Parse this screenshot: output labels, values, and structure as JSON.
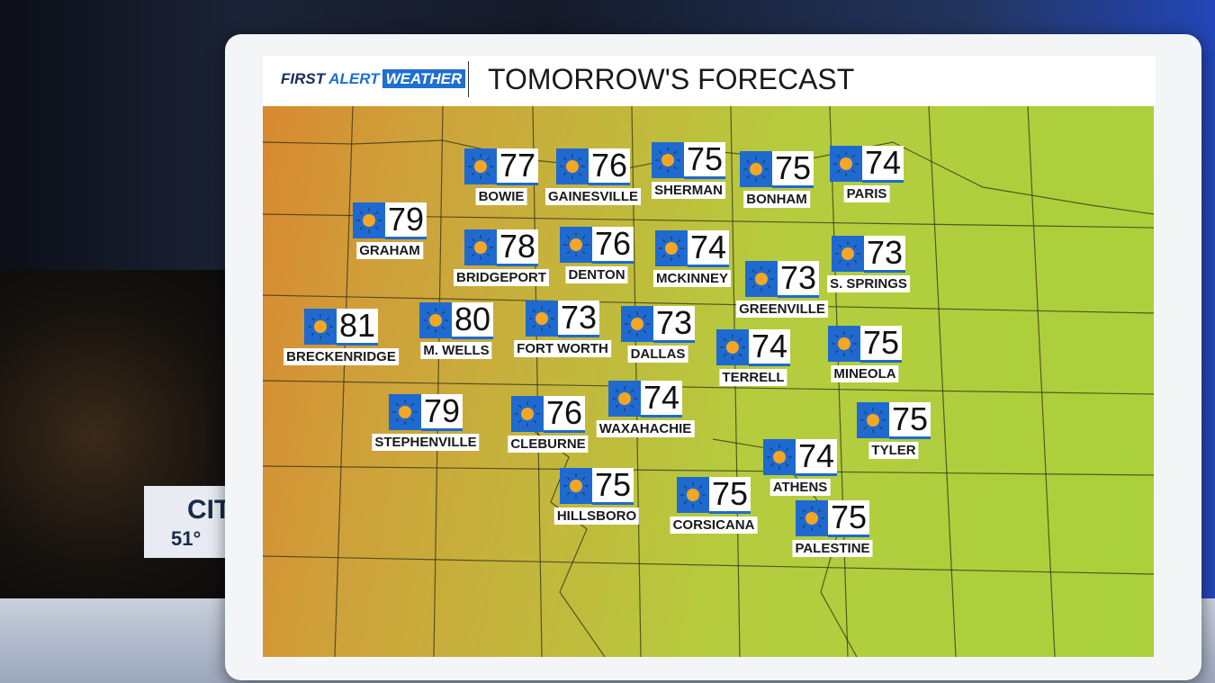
{
  "header": {
    "brand_first": "FIRST",
    "brand_alert": "ALERT",
    "brand_weather": "WEATHER",
    "title": "TOMORROW'S FORECAST"
  },
  "background": {
    "partial_text": "CIT",
    "partial_temp": "51°"
  },
  "cities": [
    {
      "name": "BOWIE",
      "temp": 77
    },
    {
      "name": "GAINESVILLE",
      "temp": 76
    },
    {
      "name": "SHERMAN",
      "temp": 75
    },
    {
      "name": "BONHAM",
      "temp": 75
    },
    {
      "name": "PARIS",
      "temp": 74
    },
    {
      "name": "GRAHAM",
      "temp": 79
    },
    {
      "name": "BRIDGEPORT",
      "temp": 78
    },
    {
      "name": "DENTON",
      "temp": 76
    },
    {
      "name": "MCKINNEY",
      "temp": 74
    },
    {
      "name": "GREENVILLE",
      "temp": 73
    },
    {
      "name": "S. SPRINGS",
      "temp": 73
    },
    {
      "name": "BRECKENRIDGE",
      "temp": 81
    },
    {
      "name": "M. WELLS",
      "temp": 80
    },
    {
      "name": "FORT WORTH",
      "temp": 73
    },
    {
      "name": "DALLAS",
      "temp": 73
    },
    {
      "name": "TERRELL",
      "temp": 74
    },
    {
      "name": "MINEOLA",
      "temp": 75
    },
    {
      "name": "STEPHENVILLE",
      "temp": 79
    },
    {
      "name": "CLEBURNE",
      "temp": 76
    },
    {
      "name": "WAXAHACHIE",
      "temp": 74
    },
    {
      "name": "TYLER",
      "temp": 75
    },
    {
      "name": "ATHENS",
      "temp": 74
    },
    {
      "name": "HILLSBORO",
      "temp": 75
    },
    {
      "name": "CORSICANA",
      "temp": 75
    },
    {
      "name": "PALESTINE",
      "temp": 75
    }
  ]
}
